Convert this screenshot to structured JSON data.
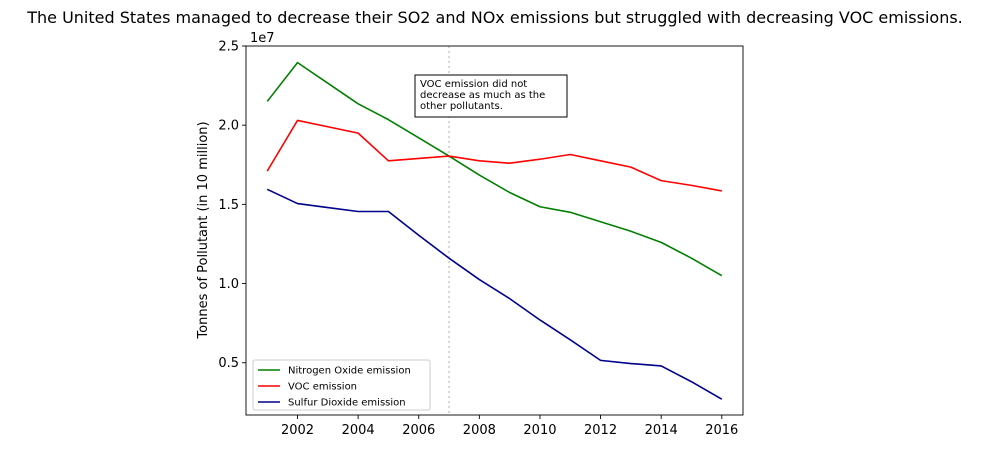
{
  "chart_data": {
    "type": "line",
    "title": "The United States managed to decrease their SO2 and NOx emissions but struggled with decreasing VOC emissions.",
    "xlabel": "",
    "ylabel": "Tonnes of Pollutant (in 10 million)",
    "y_offset_label": "1e7",
    "xlim": [
      2000.3,
      2016.7
    ],
    "ylim": [
      1700000,
      25000000
    ],
    "x": [
      2001,
      2002,
      2003,
      2004,
      2005,
      2006,
      2007,
      2008,
      2009,
      2010,
      2011,
      2012,
      2013,
      2014,
      2015,
      2016
    ],
    "x_ticks": [
      2002,
      2004,
      2006,
      2008,
      2010,
      2012,
      2014,
      2016
    ],
    "y_ticks": [
      5000000,
      10000000,
      15000000,
      20000000,
      25000000
    ],
    "y_tick_labels": [
      "0.5",
      "1.0",
      "1.5",
      "2.0",
      "2.5"
    ],
    "series": [
      {
        "name": "Nitrogen Oxide emission",
        "color": "#008000",
        "values": [
          21500000,
          23950000,
          22650000,
          21350000,
          20350000,
          19200000,
          18050000,
          16850000,
          15750000,
          14850000,
          14500000,
          13900000,
          13300000,
          12600000,
          11600000,
          10500000
        ]
      },
      {
        "name": "VOC emission",
        "color": "#ff0000",
        "values": [
          17100000,
          20300000,
          19900000,
          19500000,
          17750000,
          17900000,
          18050000,
          17750000,
          17600000,
          17850000,
          18150000,
          17750000,
          17350000,
          16500000,
          16200000,
          15850000
        ]
      },
      {
        "name": "Sulfur Dioxide emission",
        "color": "#00008b",
        "values": [
          15950000,
          15050000,
          14800000,
          14550000,
          14550000,
          13050000,
          11600000,
          10250000,
          9050000,
          7700000,
          6450000,
          5150000,
          4950000,
          4800000,
          3800000,
          2700000
        ]
      }
    ],
    "vline": {
      "x": 2007,
      "color": "#c8c8c8"
    },
    "annotation": {
      "lines": [
        "VOC emission did not",
        "decrease as much as the",
        "other pollutants."
      ]
    },
    "legend_position": "lower-left",
    "grid": false
  }
}
